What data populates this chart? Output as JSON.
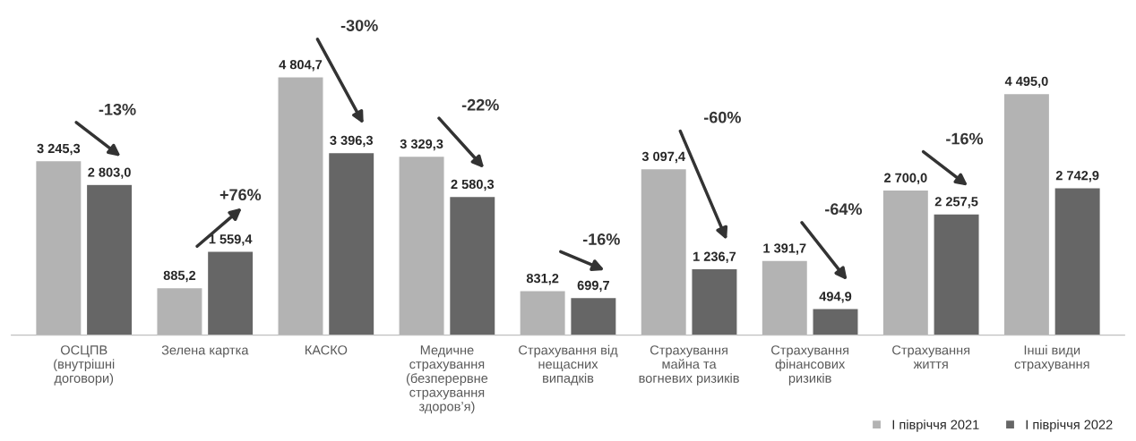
{
  "chart_data": {
    "type": "bar",
    "categories": [
      "ОСЦПВ\n(внутрішні\nдоговори)",
      "Зелена картка",
      "КАСКО",
      "Медичне\nстрахування\n(безперервне\nстрахування\nздоров’я)",
      "Страхування від\nнещасних\nвипадків",
      "Страхування\nмайна та\nвогневих ризиків",
      "Страхування\nфінансових\nризиків",
      "Страхування\nжиття",
      "Інші види\nстрахування"
    ],
    "series": [
      {
        "name": "І півріччя 2021",
        "color": "#b3b3b3",
        "values": [
          3245.3,
          885.2,
          4804.7,
          3329.3,
          831.2,
          3097.4,
          1391.7,
          2700.0,
          4495.0
        ],
        "value_labels": [
          "3 245,3",
          "885,2",
          "4 804,7",
          "3 329,3",
          "831,2",
          "3 097,4",
          "1 391,7",
          "2 700,0",
          "4 495,0"
        ]
      },
      {
        "name": "І півріччя 2022",
        "color": "#666666",
        "values": [
          2803.0,
          1559.4,
          3396.3,
          2580.3,
          699.7,
          1236.7,
          494.9,
          2257.5,
          2742.9
        ],
        "value_labels": [
          "2 803,0",
          "1 559,4",
          "3 396,3",
          "2 580,3",
          "699,7",
          "1 236,7",
          "494,9",
          "2 257,5",
          "2 742,9"
        ]
      }
    ],
    "annotations": [
      "-13%",
      "+76%",
      "-30%",
      "-22%",
      "-16%",
      "-60%",
      "-64%",
      "-16%"
    ],
    "legend": "bottom right"
  }
}
